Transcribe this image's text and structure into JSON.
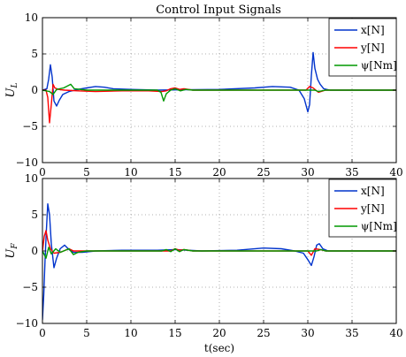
{
  "title": "Control Input Signals",
  "colors": {
    "x": "#0033cc",
    "y": "#ff0000",
    "psi": "#009900"
  },
  "chart_data": [
    {
      "type": "line",
      "title": "Control Input Signals",
      "xlabel": "",
      "ylabel": "U",
      "ylabel_sub": "L",
      "xlim": [
        0,
        40
      ],
      "ylim": [
        -10,
        10
      ],
      "xticks": [
        "0",
        "5",
        "10",
        "15",
        "20",
        "25",
        "30",
        "35",
        "40"
      ],
      "yticks": [
        "10",
        "5",
        "0",
        "−5",
        "−10"
      ],
      "grid": true,
      "legend_position": "top-right",
      "series": [
        {
          "name": "x[N]",
          "key": "x",
          "points": [
            [
              0,
              0
            ],
            [
              0.5,
              0.2
            ],
            [
              0.7,
              1.5
            ],
            [
              0.9,
              3.5
            ],
            [
              1.1,
              1.8
            ],
            [
              1.3,
              -1.5
            ],
            [
              1.6,
              -2.2
            ],
            [
              1.9,
              -1.4
            ],
            [
              2.3,
              -0.6
            ],
            [
              3,
              -0.2
            ],
            [
              4,
              0.1
            ],
            [
              5,
              0.3
            ],
            [
              6,
              0.5
            ],
            [
              7,
              0.4
            ],
            [
              8,
              0.2
            ],
            [
              10,
              0.1
            ],
            [
              13,
              0
            ],
            [
              16,
              0.05
            ],
            [
              20,
              0.1
            ],
            [
              24,
              0.3
            ],
            [
              26,
              0.5
            ],
            [
              28,
              0.4
            ],
            [
              29,
              0
            ],
            [
              29.6,
              -1.2
            ],
            [
              30,
              -3
            ],
            [
              30.2,
              -2
            ],
            [
              30.4,
              2
            ],
            [
              30.6,
              5.2
            ],
            [
              30.8,
              3
            ],
            [
              31.1,
              1.5
            ],
            [
              31.4,
              0.8
            ],
            [
              31.8,
              0.2
            ],
            [
              32.5,
              0
            ],
            [
              36,
              0
            ],
            [
              40,
              0
            ]
          ]
        },
        {
          "name": "y[N]",
          "key": "y",
          "points": [
            [
              0,
              0
            ],
            [
              0.4,
              0
            ],
            [
              0.6,
              -1
            ],
            [
              0.8,
              -4.5
            ],
            [
              1,
              -2
            ],
            [
              1.2,
              0.8
            ],
            [
              1.4,
              0.3
            ],
            [
              1.8,
              0.1
            ],
            [
              2.5,
              0
            ],
            [
              4,
              -0.1
            ],
            [
              6,
              -0.2
            ],
            [
              9,
              -0.1
            ],
            [
              12,
              -0.1
            ],
            [
              13.5,
              -0.2
            ],
            [
              14,
              -0.1
            ],
            [
              14.5,
              0.2
            ],
            [
              15,
              0.3
            ],
            [
              15.5,
              0.1
            ],
            [
              16,
              0.2
            ],
            [
              17,
              0
            ],
            [
              20,
              0
            ],
            [
              26,
              0
            ],
            [
              29.8,
              0
            ],
            [
              30.2,
              0.5
            ],
            [
              30.6,
              0.3
            ],
            [
              31.2,
              -0.3
            ],
            [
              32,
              0
            ],
            [
              40,
              0
            ]
          ]
        },
        {
          "name": "ψ[Nm]",
          "key": "psi",
          "points": [
            [
              0,
              0
            ],
            [
              0.8,
              -0.2
            ],
            [
              1.2,
              -0.6
            ],
            [
              1.6,
              0.1
            ],
            [
              2.4,
              0.3
            ],
            [
              3.2,
              0.8
            ],
            [
              3.6,
              0.2
            ],
            [
              5,
              0
            ],
            [
              10,
              0
            ],
            [
              13,
              0
            ],
            [
              13.4,
              -0.3
            ],
            [
              13.7,
              -1.5
            ],
            [
              14,
              -0.5
            ],
            [
              14.5,
              0
            ],
            [
              15,
              0.2
            ],
            [
              15.6,
              -0.1
            ],
            [
              16.2,
              0.1
            ],
            [
              17,
              0
            ],
            [
              25,
              0
            ],
            [
              30.8,
              0
            ],
            [
              31.2,
              -0.2
            ],
            [
              32,
              0
            ],
            [
              40,
              0
            ]
          ]
        }
      ]
    },
    {
      "type": "line",
      "title": "",
      "xlabel": "t(sec)",
      "ylabel": "U",
      "ylabel_sub": "F",
      "xlim": [
        0,
        40
      ],
      "ylim": [
        -10,
        10
      ],
      "xticks": [
        "0",
        "5",
        "10",
        "15",
        "20",
        "25",
        "30",
        "35",
        "40"
      ],
      "yticks": [
        "10",
        "5",
        "0",
        "−5",
        "−10"
      ],
      "grid": true,
      "legend_position": "top-right",
      "series": [
        {
          "name": "x[N]",
          "key": "x",
          "points": [
            [
              0,
              -9.5
            ],
            [
              0.15,
              -6
            ],
            [
              0.3,
              -1
            ],
            [
              0.45,
              3
            ],
            [
              0.6,
              6.5
            ],
            [
              0.8,
              5
            ],
            [
              1,
              1
            ],
            [
              1.3,
              -2.3
            ],
            [
              1.6,
              -1
            ],
            [
              2,
              0.3
            ],
            [
              2.5,
              0.8
            ],
            [
              3,
              0.2
            ],
            [
              3.5,
              -0.2
            ],
            [
              4.5,
              -0.2
            ],
            [
              6,
              0
            ],
            [
              9,
              0.1
            ],
            [
              13,
              0.1
            ],
            [
              15,
              0.2
            ],
            [
              18,
              0
            ],
            [
              22,
              0.1
            ],
            [
              25,
              0.4
            ],
            [
              27,
              0.3
            ],
            [
              28.5,
              0
            ],
            [
              29.5,
              -0.3
            ],
            [
              30,
              -1.2
            ],
            [
              30.4,
              -2
            ],
            [
              30.7,
              -0.8
            ],
            [
              31,
              0.8
            ],
            [
              31.3,
              1
            ],
            [
              31.7,
              0.3
            ],
            [
              32.3,
              0
            ],
            [
              40,
              0
            ]
          ]
        },
        {
          "name": "y[N]",
          "key": "y",
          "points": [
            [
              0,
              0
            ],
            [
              0.2,
              2
            ],
            [
              0.4,
              2.8
            ],
            [
              0.6,
              1.5
            ],
            [
              0.9,
              0.3
            ],
            [
              1.3,
              -0.3
            ],
            [
              2,
              -0.2
            ],
            [
              3,
              0.3
            ],
            [
              3.5,
              0
            ],
            [
              5,
              0
            ],
            [
              10,
              0
            ],
            [
              14.5,
              0
            ],
            [
              15,
              0.3
            ],
            [
              15.5,
              0.1
            ],
            [
              16,
              0.2
            ],
            [
              17,
              0
            ],
            [
              25,
              0
            ],
            [
              30,
              0
            ],
            [
              30.4,
              -0.6
            ],
            [
              30.8,
              0.3
            ],
            [
              31.4,
              0.2
            ],
            [
              32,
              0
            ],
            [
              40,
              0
            ]
          ]
        },
        {
          "name": "ψ[Nm]",
          "key": "psi",
          "points": [
            [
              0,
              0
            ],
            [
              0.4,
              -1
            ],
            [
              0.7,
              0.5
            ],
            [
              1,
              -0.4
            ],
            [
              1.5,
              0.3
            ],
            [
              2,
              -0.2
            ],
            [
              3,
              0.3
            ],
            [
              3.5,
              -0.5
            ],
            [
              4,
              -0.2
            ],
            [
              5,
              0
            ],
            [
              10,
              0
            ],
            [
              13.5,
              0
            ],
            [
              14,
              0.2
            ],
            [
              14.5,
              -0.1
            ],
            [
              15,
              0.3
            ],
            [
              15.5,
              -0.1
            ],
            [
              16,
              0.2
            ],
            [
              17,
              0
            ],
            [
              25,
              0
            ],
            [
              31,
              0
            ],
            [
              31.5,
              0.2
            ],
            [
              32,
              0
            ],
            [
              40,
              0
            ]
          ]
        }
      ]
    }
  ]
}
